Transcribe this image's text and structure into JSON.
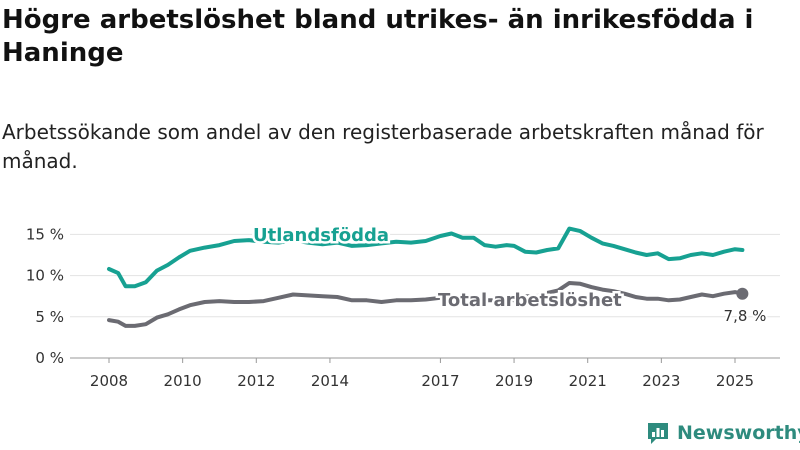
{
  "title": "Högre arbetslöshet bland utrikes- än inrikesfödda i Haninge",
  "subtitle": "Arbetssökande som andel av den registerbaserade arbetskraften månad för månad.",
  "brand": "Newsworthy",
  "colors": {
    "teal": "#17a192",
    "gray": "#6b6b72",
    "grid": "#e3e3e3",
    "brand": "#2e8b7e"
  },
  "chart_data": {
    "type": "line",
    "ylim": [
      0,
      16.5
    ],
    "xlim": [
      2008,
      2025.3
    ],
    "y_ticks": [
      {
        "value": 0,
        "label": "0 %"
      },
      {
        "value": 5,
        "label": "5 %"
      },
      {
        "value": 10,
        "label": "10 %"
      },
      {
        "value": 15,
        "label": "15 %"
      }
    ],
    "x_ticks": [
      {
        "value": 2008,
        "label": "2008"
      },
      {
        "value": 2010,
        "label": "2010"
      },
      {
        "value": 2012,
        "label": "2012"
      },
      {
        "value": 2014,
        "label": "2014"
      },
      {
        "value": 2017,
        "label": "2017"
      },
      {
        "value": 2019,
        "label": "2019"
      },
      {
        "value": 2021,
        "label": "2021"
      },
      {
        "value": 2023,
        "label": "2023"
      },
      {
        "value": 2025,
        "label": "2025"
      }
    ],
    "series": [
      {
        "name": "Utlandsfödda",
        "color": "#17a192",
        "points": [
          [
            2008.0,
            10.8
          ],
          [
            2008.25,
            10.3
          ],
          [
            2008.45,
            8.7
          ],
          [
            2008.7,
            8.7
          ],
          [
            2009.0,
            9.2
          ],
          [
            2009.3,
            10.6
          ],
          [
            2009.6,
            11.3
          ],
          [
            2009.9,
            12.2
          ],
          [
            2010.2,
            13.0
          ],
          [
            2010.6,
            13.4
          ],
          [
            2011.0,
            13.7
          ],
          [
            2011.4,
            14.2
          ],
          [
            2011.8,
            14.3
          ],
          [
            2012.2,
            14.1
          ],
          [
            2012.6,
            14.0
          ],
          [
            2013.0,
            14.3
          ],
          [
            2013.4,
            14.0
          ],
          [
            2013.8,
            13.8
          ],
          [
            2014.2,
            14.0
          ],
          [
            2014.6,
            13.6
          ],
          [
            2015.0,
            13.7
          ],
          [
            2015.4,
            13.9
          ],
          [
            2015.8,
            14.1
          ],
          [
            2016.2,
            14.0
          ],
          [
            2016.6,
            14.2
          ],
          [
            2017.0,
            14.8
          ],
          [
            2017.3,
            15.1
          ],
          [
            2017.6,
            14.6
          ],
          [
            2017.9,
            14.6
          ],
          [
            2018.2,
            13.7
          ],
          [
            2018.5,
            13.5
          ],
          [
            2018.8,
            13.7
          ],
          [
            2019.0,
            13.6
          ],
          [
            2019.3,
            12.9
          ],
          [
            2019.6,
            12.8
          ],
          [
            2019.9,
            13.1
          ],
          [
            2020.2,
            13.3
          ],
          [
            2020.5,
            15.7
          ],
          [
            2020.8,
            15.4
          ],
          [
            2021.1,
            14.6
          ],
          [
            2021.4,
            13.9
          ],
          [
            2021.7,
            13.6
          ],
          [
            2022.0,
            13.2
          ],
          [
            2022.3,
            12.8
          ],
          [
            2022.6,
            12.5
          ],
          [
            2022.9,
            12.7
          ],
          [
            2023.2,
            12.0
          ],
          [
            2023.5,
            12.1
          ],
          [
            2023.8,
            12.5
          ],
          [
            2024.1,
            12.7
          ],
          [
            2024.4,
            12.5
          ],
          [
            2024.7,
            12.9
          ],
          [
            2025.0,
            13.2
          ],
          [
            2025.2,
            13.1
          ]
        ]
      },
      {
        "name": "Total arbetslöshet",
        "color": "#6b6b72",
        "points": [
          [
            2008.0,
            4.6
          ],
          [
            2008.25,
            4.4
          ],
          [
            2008.45,
            3.9
          ],
          [
            2008.7,
            3.9
          ],
          [
            2009.0,
            4.1
          ],
          [
            2009.3,
            4.9
          ],
          [
            2009.6,
            5.3
          ],
          [
            2009.9,
            5.9
          ],
          [
            2010.2,
            6.4
          ],
          [
            2010.6,
            6.8
          ],
          [
            2011.0,
            6.9
          ],
          [
            2011.4,
            6.8
          ],
          [
            2011.8,
            6.8
          ],
          [
            2012.2,
            6.9
          ],
          [
            2012.6,
            7.3
          ],
          [
            2013.0,
            7.7
          ],
          [
            2013.4,
            7.6
          ],
          [
            2013.8,
            7.5
          ],
          [
            2014.2,
            7.4
          ],
          [
            2014.6,
            7.0
          ],
          [
            2015.0,
            7.0
          ],
          [
            2015.4,
            6.8
          ],
          [
            2015.8,
            7.0
          ],
          [
            2016.2,
            7.0
          ],
          [
            2016.6,
            7.1
          ],
          [
            2017.0,
            7.3
          ],
          [
            2017.3,
            7.4
          ],
          [
            2017.6,
            7.3
          ],
          [
            2017.9,
            7.4
          ],
          [
            2018.2,
            7.0
          ],
          [
            2018.5,
            7.0
          ],
          [
            2018.8,
            7.1
          ],
          [
            2019.0,
            7.0
          ],
          [
            2019.3,
            7.5
          ],
          [
            2019.6,
            7.5
          ],
          [
            2019.9,
            7.9
          ],
          [
            2020.2,
            8.2
          ],
          [
            2020.5,
            9.1
          ],
          [
            2020.8,
            9.0
          ],
          [
            2021.1,
            8.6
          ],
          [
            2021.4,
            8.3
          ],
          [
            2021.7,
            8.1
          ],
          [
            2022.0,
            7.8
          ],
          [
            2022.3,
            7.4
          ],
          [
            2022.6,
            7.2
          ],
          [
            2022.9,
            7.2
          ],
          [
            2023.2,
            7.0
          ],
          [
            2023.5,
            7.1
          ],
          [
            2023.8,
            7.4
          ],
          [
            2024.1,
            7.7
          ],
          [
            2024.4,
            7.5
          ],
          [
            2024.7,
            7.8
          ],
          [
            2025.0,
            8.0
          ],
          [
            2025.2,
            7.8
          ]
        ]
      }
    ],
    "last_value_label": "7,8 %"
  }
}
